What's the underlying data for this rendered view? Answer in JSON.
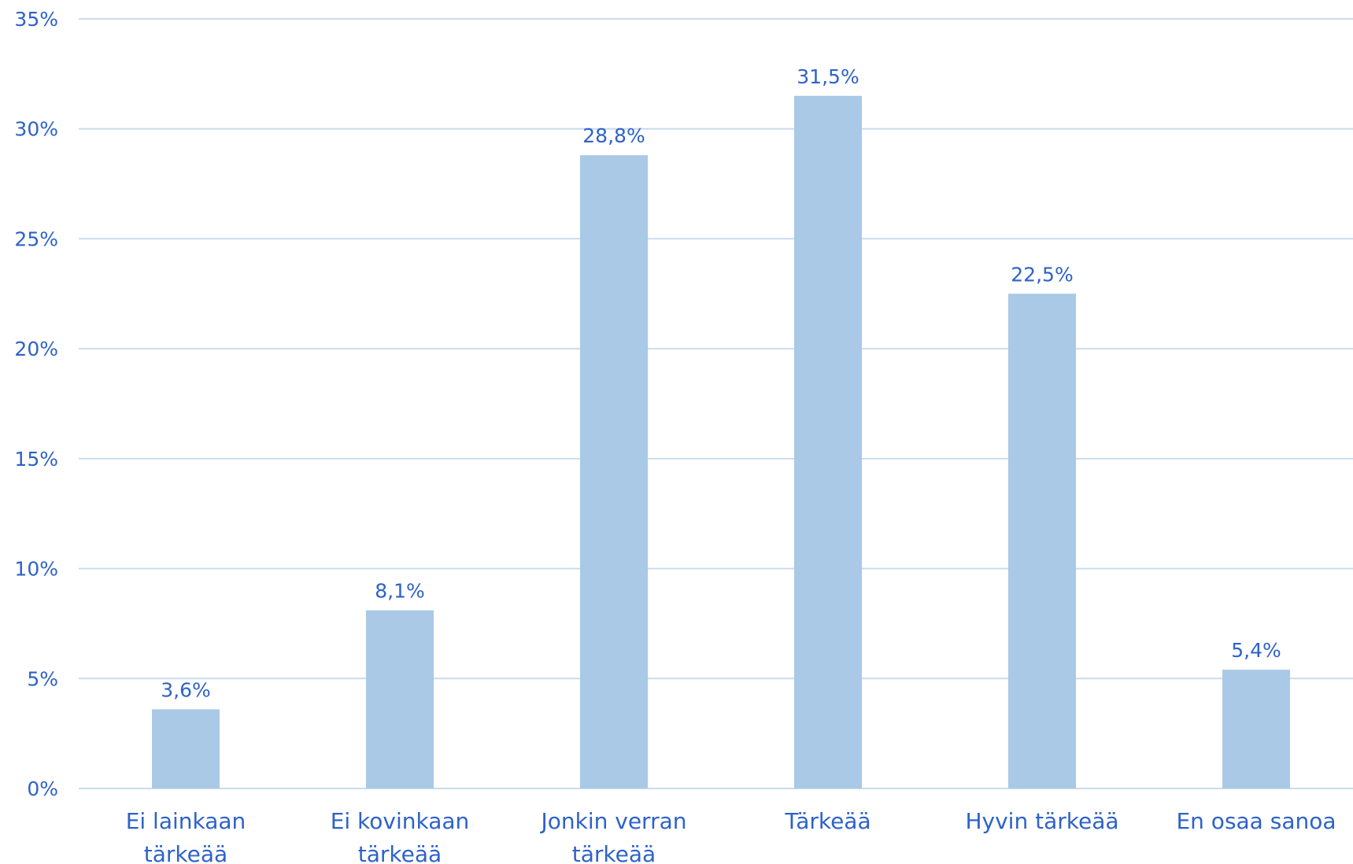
{
  "chart_data": {
    "type": "bar",
    "categories": [
      [
        "Ei lainkaan",
        "tärkeää"
      ],
      [
        "Ei kovinkaan",
        "tärkeää"
      ],
      [
        "Jonkin verran",
        "tärkeää"
      ],
      [
        "Tärkeää"
      ],
      [
        "Hyvin tärkeää"
      ],
      [
        "En osaa sanoa"
      ]
    ],
    "values": [
      3.6,
      8.1,
      28.8,
      31.5,
      22.5,
      5.4
    ],
    "data_labels": [
      "3,6%",
      "8,1%",
      "28,8%",
      "31,5%",
      "22,5%",
      "5,4%"
    ],
    "yticks": [
      0,
      5,
      10,
      15,
      20,
      25,
      30,
      35
    ],
    "ytick_labels": [
      "0%",
      "5%",
      "10%",
      "15%",
      "20%",
      "25%",
      "30%",
      "35%"
    ],
    "ylim": [
      0,
      35
    ],
    "grid": true,
    "legend": "none",
    "colors": {
      "bar": "#a9c9e6",
      "gridline": "#c9dcf0",
      "text": "#2e62c9"
    }
  }
}
